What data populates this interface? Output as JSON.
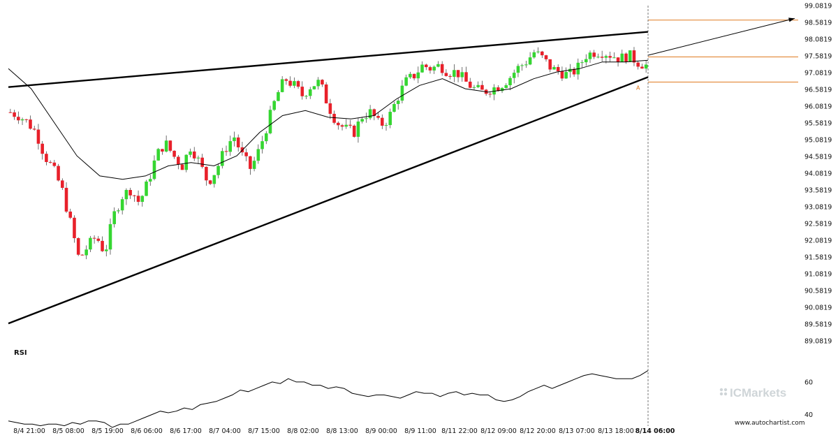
{
  "chart_data": {
    "type": "candlestick",
    "x_ticks": [
      "8/4 21:00",
      "8/5 08:00",
      "8/5 19:00",
      "8/6 06:00",
      "8/6 17:00",
      "8/7 04:00",
      "8/7 15:00",
      "8/8 02:00",
      "8/8 13:00",
      "8/9 00:00",
      "8/9 11:00",
      "8/11 22:00",
      "8/12 09:00",
      "8/12 20:00",
      "8/13 07:00",
      "8/13 18:00",
      "8/14 06:00"
    ],
    "y_ticks": [
      "99.0819",
      "98.5819",
      "98.0819",
      "97.5819",
      "97.0819",
      "96.5819",
      "96.0819",
      "95.5819",
      "95.0819",
      "94.5819",
      "94.0819",
      "93.5819",
      "93.0819",
      "92.5819",
      "92.0819",
      "91.5819",
      "91.0819",
      "90.5819",
      "90.0819",
      "89.5819",
      "89.0819"
    ],
    "ylim": [
      89.0819,
      99.0819
    ],
    "price_path": [
      95.9,
      95.8,
      95.6,
      95.3,
      94.6,
      94.2,
      93.6,
      92.6,
      91.5,
      91.9,
      92.2,
      91.7,
      92.8,
      93.4,
      93.6,
      93.2,
      93.8,
      94.6,
      95.0,
      94.6,
      94.3,
      94.9,
      94.4,
      93.8,
      94.2,
      94.8,
      95.2,
      94.6,
      94.2,
      94.8,
      95.6,
      96.4,
      96.9,
      96.7,
      96.4,
      96.7,
      96.8,
      96.1,
      95.6,
      95.4,
      95.3,
      95.8,
      95.9,
      95.5,
      95.7,
      96.3,
      96.8,
      97.0,
      97.3,
      97.2,
      97.3,
      97.1,
      97.1,
      96.8,
      96.6,
      96.5,
      96.6,
      96.7,
      96.9,
      97.2,
      97.4,
      97.7,
      97.5,
      97.2,
      97.1,
      97.0,
      97.2,
      97.6,
      97.7,
      97.7,
      97.6,
      97.5,
      97.6,
      97.4,
      97.3
    ],
    "ma_path": [
      97.2,
      96.6,
      95.6,
      94.6,
      94.0,
      93.9,
      94.0,
      94.3,
      94.4,
      94.3,
      94.6,
      95.3,
      95.8,
      95.95,
      95.75,
      95.7,
      95.8,
      96.3,
      96.7,
      96.9,
      96.6,
      96.5,
      96.6,
      96.9,
      97.1,
      97.2,
      97.4,
      97.4,
      97.45
    ],
    "upper_trendline": [
      96.65,
      98.3
    ],
    "lower_trendline": [
      89.6,
      96.95
    ],
    "projection": [
      97.6,
      98.7
    ],
    "levels": [
      98.65,
      97.55,
      96.8
    ],
    "point_label": "A",
    "rsi": {
      "label": "RSI",
      "y_ticks": [
        "60",
        "40"
      ],
      "ylim": [
        35,
        75
      ],
      "values": [
        36,
        35,
        34,
        34,
        33,
        34,
        34,
        33,
        35,
        34,
        36,
        36,
        35,
        32,
        34,
        34,
        36,
        38,
        40,
        42,
        41,
        42,
        44,
        43,
        46,
        47,
        48,
        50,
        52,
        55,
        54,
        56,
        58,
        60,
        59,
        62,
        60,
        60,
        58,
        58,
        56,
        57,
        56,
        53,
        52,
        51,
        52,
        52,
        51,
        50,
        52,
        54,
        53,
        53,
        51,
        53,
        54,
        52,
        53,
        52,
        52,
        49,
        48,
        49,
        51,
        54,
        56,
        58,
        56,
        58,
        60,
        62,
        64,
        65,
        64,
        63,
        62,
        62,
        62,
        64,
        67
      ]
    },
    "colors": {
      "up": "#35d631",
      "down": "#e8202a",
      "level": "#e07a20",
      "line": "#000000"
    }
  },
  "watermark": "ICMarkets",
  "site_url": "www.autochartist.com"
}
